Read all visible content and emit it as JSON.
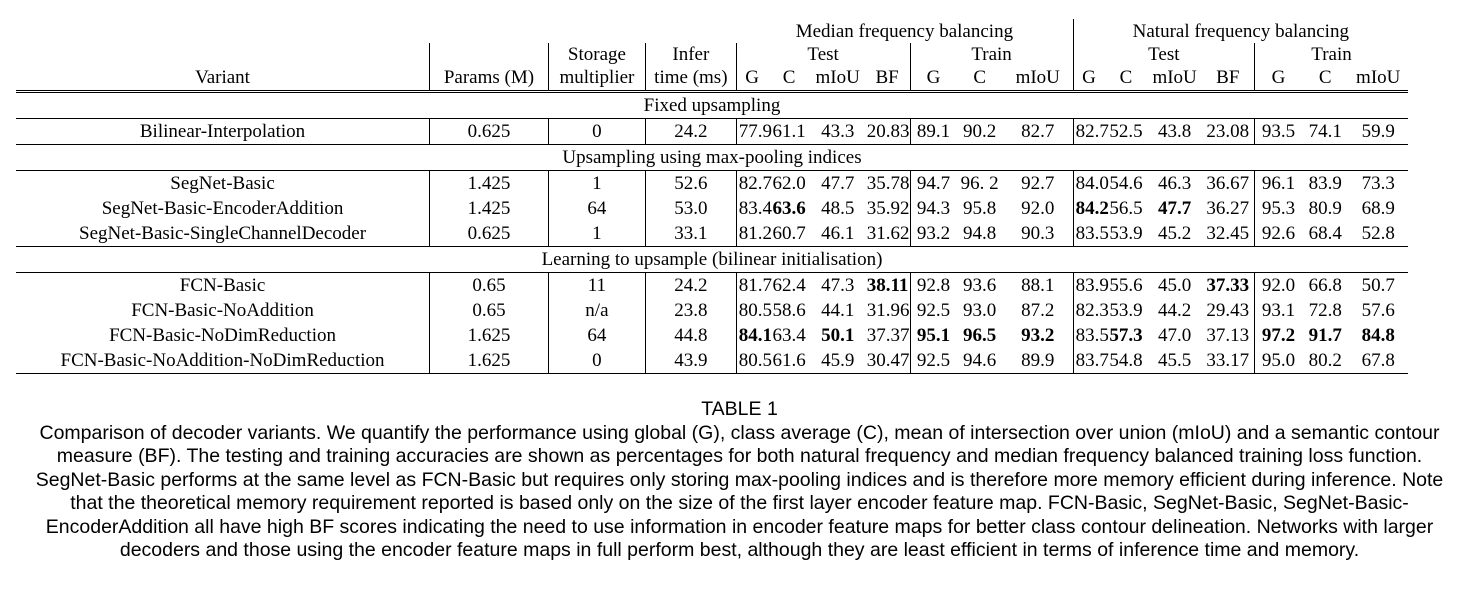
{
  "table": {
    "group_headers": {
      "median": "Median frequency balancing",
      "natural": "Natural frequency balancing"
    },
    "sub_headers": {
      "test": "Test",
      "train": "Train"
    },
    "col_headers": {
      "variant": "Variant",
      "params": "Params (M)",
      "storage_top": "Storage",
      "storage_bottom": "multiplier",
      "infer_top": "Infer",
      "infer_bottom": "time (ms)",
      "g": "G",
      "c": "C",
      "miou": "mIoU",
      "bf": "BF"
    },
    "sections": [
      {
        "title": "Fixed upsampling",
        "rows": [
          {
            "variant": "Bilinear-Interpolation",
            "params": "0.625",
            "storage": "0",
            "infer": "24.2",
            "m_test": [
              "77.9",
              "61.1",
              "43.3",
              "20.83"
            ],
            "m_train": [
              "89.1",
              "90.2",
              "82.7"
            ],
            "n_test": [
              "82.7",
              "52.5",
              "43.8",
              "23.08"
            ],
            "n_train": [
              "93.5",
              "74.1",
              "59.9"
            ]
          }
        ]
      },
      {
        "title": "Upsampling using max-pooling indices",
        "rows": [
          {
            "variant": "SegNet-Basic",
            "params": "1.425",
            "storage": "1",
            "infer": "52.6",
            "m_test": [
              "82.7",
              "62.0",
              "47.7",
              "35.78"
            ],
            "m_train": [
              "94.7",
              "96. 2",
              "92.7"
            ],
            "n_test": [
              "84.0",
              "54.6",
              "46.3",
              "36.67"
            ],
            "n_train": [
              "96.1",
              "83.9",
              "73.3"
            ]
          },
          {
            "variant": "SegNet-Basic-EncoderAddition",
            "params": "1.425",
            "storage": "64",
            "infer": "53.0",
            "m_test": [
              "83.4",
              "63.6",
              "48.5",
              "35.92"
            ],
            "m_train": [
              "94.3",
              "95.8",
              "92.0"
            ],
            "n_test": [
              "84.2",
              "56.5",
              "47.7",
              "36.27"
            ],
            "n_train": [
              "95.3",
              "80.9",
              "68.9"
            ]
          },
          {
            "variant": "SegNet-Basic-SingleChannelDecoder",
            "params": "0.625",
            "storage": "1",
            "infer": "33.1",
            "m_test": [
              "81.2",
              "60.7",
              "46.1",
              "31.62"
            ],
            "m_train": [
              "93.2",
              "94.8",
              "90.3"
            ],
            "n_test": [
              "83.5",
              "53.9",
              "45.2",
              "32.45"
            ],
            "n_train": [
              "92.6",
              "68.4",
              "52.8"
            ]
          }
        ]
      },
      {
        "title": "Learning to upsample (bilinear initialisation)",
        "rows": [
          {
            "variant": "FCN-Basic",
            "params": "0.65",
            "storage": "11",
            "infer": "24.2",
            "m_test": [
              "81.7",
              "62.4",
              "47.3",
              "38.11"
            ],
            "m_train": [
              "92.8",
              "93.6",
              "88.1"
            ],
            "n_test": [
              "83.9",
              "55.6",
              "45.0",
              "37.33"
            ],
            "n_train": [
              "92.0",
              "66.8",
              "50.7"
            ]
          },
          {
            "variant": "FCN-Basic-NoAddition",
            "params": "0.65",
            "storage": "n/a",
            "infer": "23.8",
            "m_test": [
              "80.5",
              "58.6",
              "44.1",
              "31.96"
            ],
            "m_train": [
              "92.5",
              "93.0",
              "87.2"
            ],
            "n_test": [
              "82.3",
              "53.9",
              "44.2",
              "29.43"
            ],
            "n_train": [
              "93.1",
              "72.8",
              "57.6"
            ]
          },
          {
            "variant": "FCN-Basic-NoDimReduction",
            "params": "1.625",
            "storage": "64",
            "infer": "44.8",
            "m_test": [
              "84.1",
              "63.4",
              "50.1",
              "37.37"
            ],
            "m_train": [
              "95.1",
              "96.5",
              "93.2"
            ],
            "n_test": [
              "83.5",
              "57.3",
              "47.0",
              "37.13"
            ],
            "n_train": [
              "97.2",
              "91.7",
              "84.8"
            ]
          },
          {
            "variant": "FCN-Basic-NoAddition-NoDimReduction",
            "params": "1.625",
            "storage": "0",
            "infer": "43.9",
            "m_test": [
              "80.5",
              "61.6",
              "45.9",
              "30.47"
            ],
            "m_train": [
              "92.5",
              "94.6",
              "89.9"
            ],
            "n_test": [
              "83.7",
              "54.8",
              "45.5",
              "33.17"
            ],
            "n_train": [
              "95.0",
              "80.2",
              "67.8"
            ]
          }
        ]
      }
    ],
    "bold_cells": [
      "1.1.m_test.1",
      "1.1.n_test.0",
      "1.1.n_test.2",
      "2.0.m_test.3",
      "2.0.n_test.3",
      "2.2.m_test.0",
      "2.2.m_test.2",
      "2.2.m_train.0",
      "2.2.m_train.1",
      "2.2.m_train.2",
      "2.2.n_test.1",
      "2.2.n_train.0",
      "2.2.n_train.1",
      "2.2.n_train.2"
    ],
    "highlight_colors": {
      "params": "#e36cf0",
      "storage": "#f4f27a",
      "infer": "#7fe07f",
      "g": "#7ff0ee"
    }
  },
  "caption": {
    "label": "TABLE 1",
    "text": "Comparison of decoder variants. We quantify the performance using global (G), class average (C), mean of intersection over union (mIoU) and a semantic contour measure (BF). The testing and training accuracies are shown as percentages for both natural frequency and median frequency balanced training loss function. SegNet-Basic performs at the same level as FCN-Basic but requires only storing max-pooling indices and is therefore more memory efficient during inference. Note that the theoretical memory requirement reported is based only on the size of the first layer encoder feature map. FCN-Basic, SegNet-Basic, SegNet-Basic-EncoderAddition all have high BF scores indicating the need to use information in encoder feature maps for better class contour delineation. Networks with larger decoders and those using the encoder feature maps in full perform best, although they are least efficient in terms of inference time and memory."
  }
}
